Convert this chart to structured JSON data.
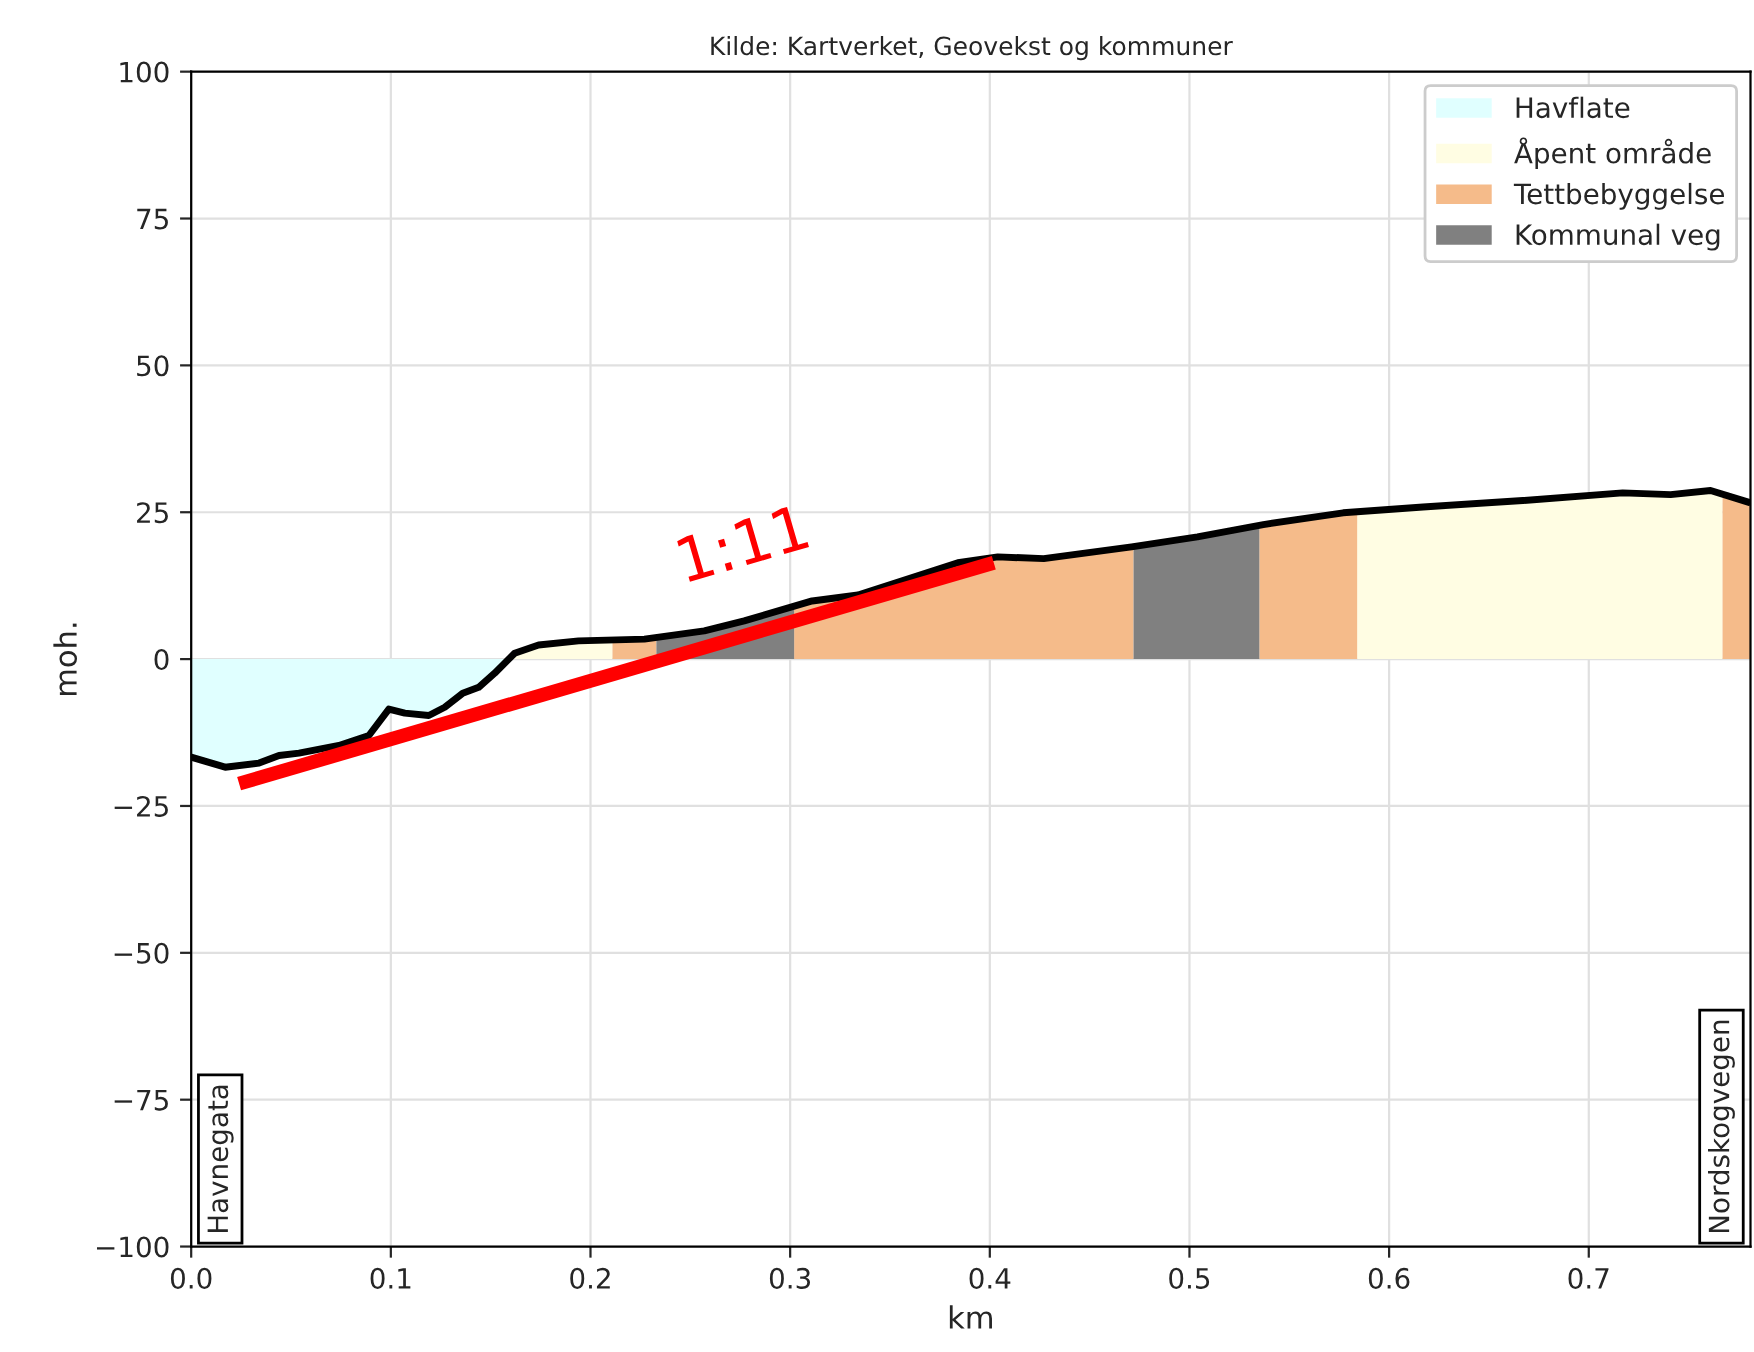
{
  "chart_data": {
    "type": "line",
    "title": "Kilde: Kartverket, Geovekst og kommuner",
    "xlabel": "km",
    "ylabel": "moh.",
    "xlim": [
      0,
      0.781
    ],
    "ylim": [
      -100,
      100
    ],
    "xticks": [
      {
        "value": 0,
        "label": "0.0"
      },
      0.1,
      0.2,
      0.3,
      0.4,
      0.5,
      0.6,
      0.7
    ],
    "yticks": [
      -100,
      -75,
      -50,
      -25,
      0,
      25,
      50,
      75,
      100
    ],
    "grid": true,
    "legend": "top right",
    "series": [
      {
        "name": "Havflate",
        "type": "area",
        "color": "#e0ffff",
        "x": [
          0,
          0.017,
          0.034,
          0.044,
          0.054,
          0.074,
          0.089,
          0.099,
          0.107,
          0.119,
          0.127,
          0.136,
          0.144,
          0.152,
          0.157
        ],
        "values": [
          -16.7,
          -18.4,
          -17.7,
          -16.4,
          -16.0,
          -14.7,
          -13.0,
          -8.5,
          -9.2,
          -9.6,
          -8.2,
          -5.8,
          -4.8,
          -2.4,
          0
        ]
      },
      {
        "name": "Åpent område",
        "type": "area",
        "color": "#fffde3",
        "x": [
          0.157,
          0.162,
          0.174,
          0.194,
          0.211,
          0.4,
          0.584,
          0.617,
          0.667,
          0.717,
          0.741,
          0.761,
          0.767
        ],
        "values": [
          0,
          1.0,
          2.4,
          3.1,
          3.2,
          null,
          25.1,
          25.9,
          27.0,
          28.3,
          28.0,
          28.7,
          28.4
        ]
      },
      {
        "name": "Tettbebyggelse",
        "type": "area",
        "color": "#f5bb8a",
        "x": [
          0.211,
          0.227,
          0.233,
          0.27,
          0.302,
          0.311,
          0.334,
          0.384,
          0.404,
          0.427,
          0.471,
          0.472,
          0.5,
          0.535,
          0.537,
          0.577,
          0.584,
          0.7,
          0.767,
          0.781
        ],
        "values": [
          3.2,
          3.4,
          3.6,
          null,
          9.2,
          9.9,
          10.9,
          16.4,
          17.4,
          17.1,
          19.1,
          19.1,
          null,
          22.8,
          22.9,
          24.9,
          25.1,
          null,
          28.4,
          26.6
        ]
      },
      {
        "name": "Kommunal veg",
        "type": "area",
        "color": "#808080",
        "x": [
          0.233,
          0.257,
          0.277,
          0.302,
          0.4,
          0.472,
          0.504,
          0.535
        ],
        "values": [
          3.6,
          4.8,
          6.5,
          9.2,
          null,
          19.1,
          20.8,
          22.8
        ]
      },
      {
        "color": "#000000",
        "x": [
          0,
          0.017,
          0.034,
          0.044,
          0.054,
          0.074,
          0.089,
          0.099,
          0.107,
          0.119,
          0.127,
          0.136,
          0.144,
          0.152,
          0.162,
          0.174,
          0.194,
          0.227,
          0.257,
          0.277,
          0.311,
          0.334,
          0.384,
          0.404,
          0.427,
          0.471,
          0.504,
          0.537,
          0.577,
          0.617,
          0.667,
          0.717,
          0.741,
          0.761,
          0.781
        ],
        "values": [
          -16.7,
          -18.4,
          -17.7,
          -16.4,
          -16.0,
          -14.7,
          -13.0,
          -8.5,
          -9.2,
          -9.6,
          -8.2,
          -5.8,
          -4.8,
          -2.4,
          1.0,
          2.4,
          3.1,
          3.4,
          4.8,
          6.5,
          9.9,
          10.9,
          16.4,
          17.4,
          17.1,
          19.1,
          20.8,
          22.9,
          24.9,
          25.9,
          27.0,
          28.3,
          28.0,
          28.7,
          26.6
        ]
      },
      {
        "type": "line",
        "color": "#ff0000",
        "x": [
          0.024,
          0.402
        ],
        "values": [
          -21.2,
          16.4
        ]
      }
    ],
    "annotations": [
      "1:11",
      "Havnegata",
      "Nordskogvegen"
    ]
  }
}
